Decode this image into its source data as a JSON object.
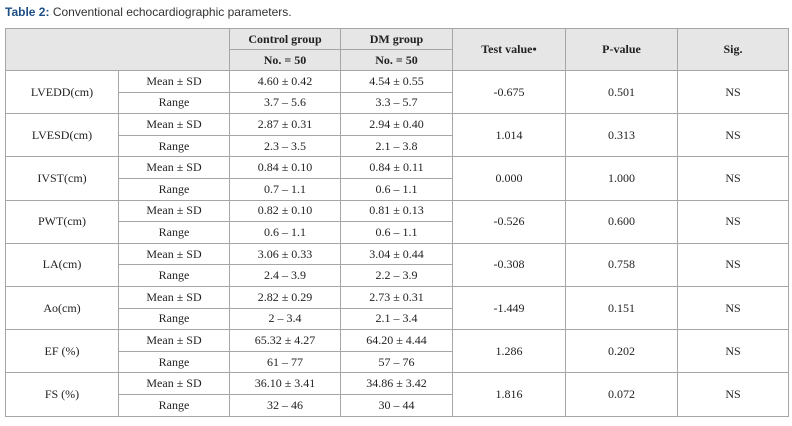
{
  "caption": {
    "label": "Table 2:",
    "text": "Conventional echocardiographic parameters."
  },
  "table": {
    "header": {
      "control": "Control group",
      "control_n": "No. = 50",
      "dm": "DM group",
      "dm_n": "No. = 50",
      "test": "Test value•",
      "p": "P-value",
      "sig": "Sig."
    },
    "rows": [
      {
        "param": "LVEDD(cm)",
        "stats": [
          [
            "Mean ± SD",
            "4.60 ± 0.42",
            "4.54 ± 0.55"
          ],
          [
            "Range",
            "3.7 – 5.6",
            "3.3 – 5.7"
          ]
        ],
        "test": "-0.675",
        "p": "0.501",
        "sig": "NS"
      },
      {
        "param": "LVESD(cm)",
        "stats": [
          [
            "Mean ± SD",
            "2.87 ± 0.31",
            "2.94 ± 0.40"
          ],
          [
            "Range",
            "2.3 – 3.5",
            "2.1 – 3.8"
          ]
        ],
        "test": "1.014",
        "p": "0.313",
        "sig": "NS"
      },
      {
        "param": "IVST(cm)",
        "stats": [
          [
            "Mean ± SD",
            "0.84 ± 0.10",
            "0.84 ± 0.11"
          ],
          [
            "Range",
            "0.7 – 1.1",
            "0.6 – 1.1"
          ]
        ],
        "test": "0.000",
        "p": "1.000",
        "sig": "NS"
      },
      {
        "param": "PWT(cm)",
        "stats": [
          [
            "Mean ± SD",
            "0.82 ± 0.10",
            "0.81 ± 0.13"
          ],
          [
            "Range",
            "0.6 – 1.1",
            "0.6 – 1.1"
          ]
        ],
        "test": "-0.526",
        "p": "0.600",
        "sig": "NS"
      },
      {
        "param": "LA(cm)",
        "stats": [
          [
            "Mean ± SD",
            "3.06 ± 0.33",
            "3.04 ± 0.44"
          ],
          [
            "Range",
            "2.4 – 3.9",
            "2.2 – 3.9"
          ]
        ],
        "test": "-0.308",
        "p": "0.758",
        "sig": "NS"
      },
      {
        "param": "Ao(cm)",
        "stats": [
          [
            "Mean ± SD",
            "2.82 ± 0.29",
            "2.73 ± 0.31"
          ],
          [
            "Range",
            "2 – 3.4",
            "2.1 – 3.4"
          ]
        ],
        "test": "-1.449",
        "p": "0.151",
        "sig": "NS"
      },
      {
        "param": "EF (%)",
        "stats": [
          [
            "Mean ± SD",
            "65.32 ± 4.27",
            "64.20 ± 4.44"
          ],
          [
            "Range",
            "61 – 77",
            "57 – 76"
          ]
        ],
        "test": "1.286",
        "p": "0.202",
        "sig": "NS"
      },
      {
        "param": "FS (%)",
        "stats": [
          [
            "Mean ± SD",
            "36.10 ± 3.41",
            "34.86 ± 3.42"
          ],
          [
            "Range",
            "32 – 46",
            "30 – 44"
          ]
        ],
        "test": "1.816",
        "p": "0.072",
        "sig": "NS"
      }
    ]
  }
}
